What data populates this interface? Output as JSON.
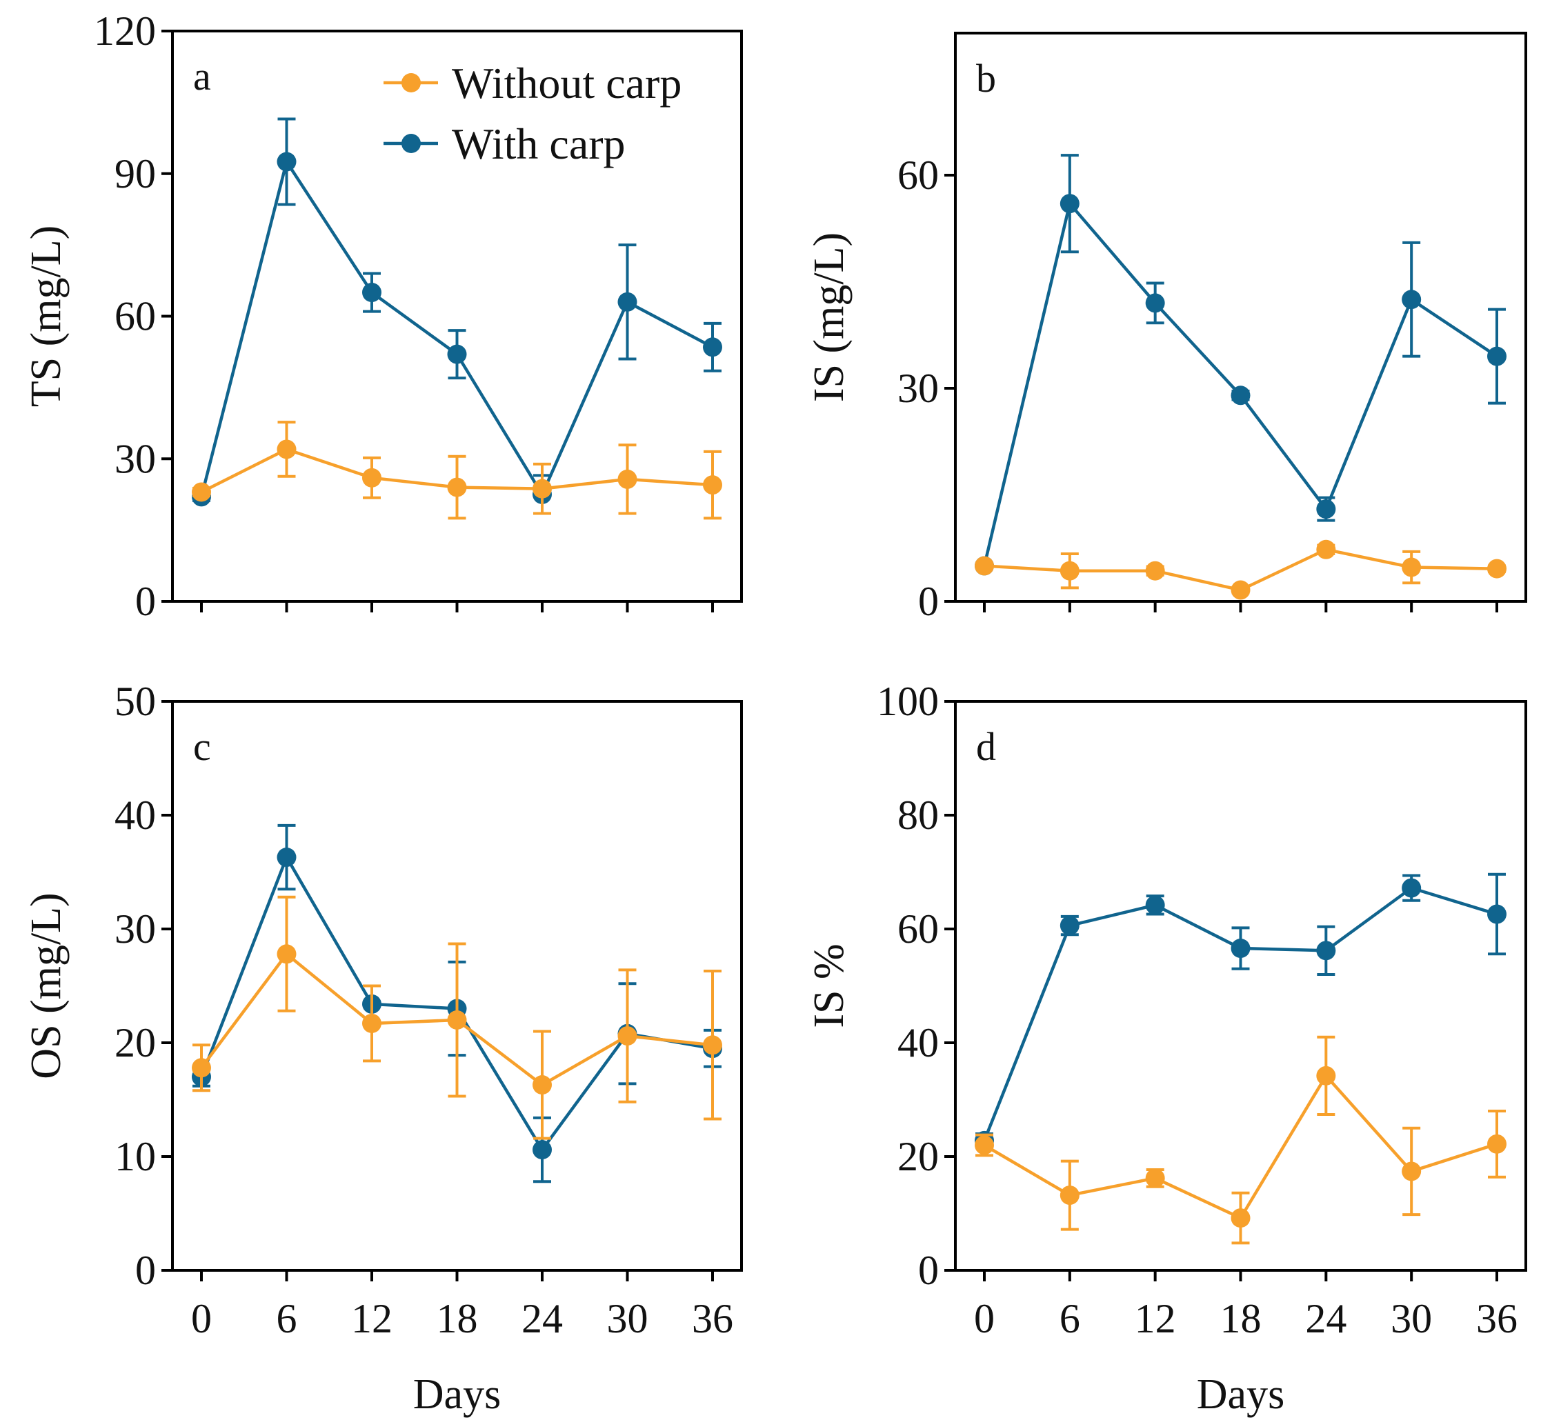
{
  "figure": {
    "xlabel": "Days"
  },
  "legend": {
    "entries": [
      {
        "name": "Without carp",
        "color": "#F7A02B"
      },
      {
        "name": "With carp",
        "color": "#10648E"
      }
    ]
  },
  "chart_data": [
    {
      "type": "line",
      "panel": "a",
      "ylabel": "TS (mg/L)",
      "xlabel": "",
      "x": [
        0,
        6,
        12,
        18,
        24,
        30,
        36
      ],
      "xticks": [
        "0",
        "6",
        "12",
        "18",
        "24",
        "30",
        "36"
      ],
      "ylim": [
        0,
        120
      ],
      "yticks": [
        0,
        30,
        60,
        90,
        120
      ],
      "series": [
        {
          "name": "Without carp",
          "color": "#F7A02B",
          "values": [
            23,
            32,
            26,
            24,
            23.7,
            25.7,
            24.5
          ],
          "errors": [
            0.8,
            5.7,
            4.2,
            6.5,
            5.2,
            7.2,
            7.0
          ]
        },
        {
          "name": "With carp",
          "color": "#10648E",
          "values": [
            22,
            92.5,
            65,
            52,
            22.5,
            63,
            53.5
          ],
          "errors": [
            0.8,
            9.0,
            4.0,
            5.0,
            4.0,
            12.0,
            5.0
          ]
        }
      ]
    },
    {
      "type": "line",
      "panel": "b",
      "ylabel": "IS (mg/L)",
      "xlabel": "",
      "x": [
        0,
        6,
        12,
        18,
        24,
        30,
        36
      ],
      "xticks": [
        "0",
        "6",
        "12",
        "18",
        "24",
        "30",
        "36"
      ],
      "ylim": [
        0,
        80
      ],
      "yticks": [
        0,
        30,
        60
      ],
      "series": [
        {
          "name": "Without carp",
          "color": "#F7A02B",
          "values": [
            5,
            4.3,
            4.3,
            1.6,
            7.3,
            4.8,
            4.6
          ],
          "errors": [
            0.4,
            2.4,
            0.6,
            0.4,
            0.6,
            2.2,
            0.4
          ]
        },
        {
          "name": "With carp",
          "color": "#10648E",
          "values": [
            5,
            56,
            42,
            29,
            13,
            42.5,
            34.5
          ],
          "errors": [
            0.4,
            6.8,
            2.8,
            0.6,
            1.6,
            8.0,
            6.6
          ]
        }
      ]
    },
    {
      "type": "line",
      "panel": "c",
      "ylabel": "OS (mg/L)",
      "xlabel": "Days",
      "x": [
        0,
        6,
        12,
        18,
        24,
        30,
        36
      ],
      "xticks": [
        "0",
        "6",
        "12",
        "18",
        "24",
        "30",
        "36"
      ],
      "ylim": [
        0,
        50
      ],
      "yticks": [
        0,
        10,
        20,
        30,
        40,
        50
      ],
      "series": [
        {
          "name": "Without carp",
          "color": "#F7A02B",
          "values": [
            17.8,
            27.8,
            21.7,
            22,
            16.3,
            20.6,
            19.8
          ],
          "errors": [
            2.0,
            5.0,
            3.3,
            6.7,
            4.7,
            5.8,
            6.5
          ]
        },
        {
          "name": "With carp",
          "color": "#10648E",
          "values": [
            17,
            36.3,
            23.4,
            23,
            10.6,
            20.8,
            19.5
          ],
          "errors": [
            0.8,
            2.8,
            1.6,
            4.1,
            2.8,
            4.4,
            1.6
          ]
        }
      ]
    },
    {
      "type": "line",
      "panel": "d",
      "ylabel": "IS %",
      "xlabel": "Days",
      "x": [
        0,
        6,
        12,
        18,
        24,
        30,
        36
      ],
      "xticks": [
        "0",
        "6",
        "12",
        "18",
        "24",
        "30",
        "36"
      ],
      "ylim": [
        0,
        100
      ],
      "yticks": [
        0,
        20,
        40,
        60,
        80,
        100
      ],
      "series": [
        {
          "name": "Without carp",
          "color": "#F7A02B",
          "values": [
            22,
            13.2,
            16.2,
            9.2,
            34.2,
            17.4,
            22.2
          ],
          "errors": [
            1.8,
            6.0,
            1.5,
            4.4,
            6.8,
            7.6,
            5.8
          ]
        },
        {
          "name": "With carp",
          "color": "#10648E",
          "values": [
            22.8,
            60.6,
            64.2,
            56.6,
            56.2,
            67.2,
            62.6
          ],
          "errors": [
            1.2,
            1.6,
            1.6,
            3.6,
            4.2,
            2.2,
            7.0
          ]
        }
      ]
    }
  ]
}
